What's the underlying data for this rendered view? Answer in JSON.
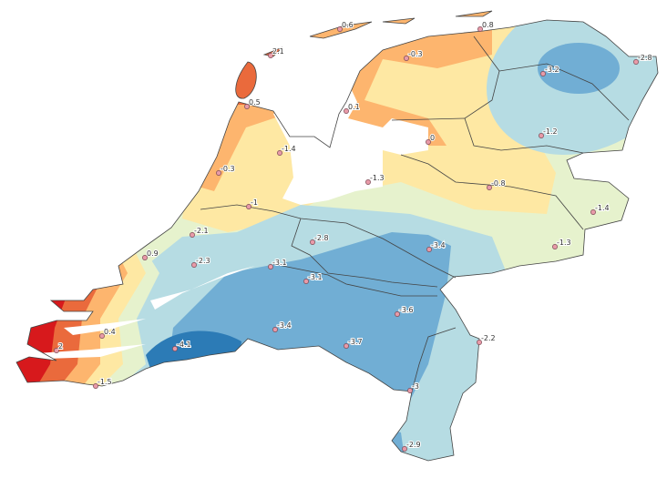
{
  "map": {
    "colors": {
      "red": "#d7191c",
      "dark_orange": "#ea6a3c",
      "orange": "#fdb56e",
      "yellow": "#fee8a3",
      "light_green": "#e6f2cd",
      "light_blue": "#b6dce3",
      "medium_blue": "#71aed4",
      "dark_blue": "#2c7bb6",
      "water": "#ffffff"
    },
    "stations": [
      {
        "value": "0.6"
      },
      {
        "value": "0.8"
      },
      {
        "value": "2.1"
      },
      {
        "value": "-0.3"
      },
      {
        "value": "-3.2"
      },
      {
        "value": "-2.8"
      },
      {
        "value": "0.5"
      },
      {
        "value": "0.1"
      },
      {
        "value": "0"
      },
      {
        "value": "-1.2"
      },
      {
        "value": "-1.4"
      },
      {
        "value": "-0.3"
      },
      {
        "value": "-1.3"
      },
      {
        "value": "-0.8"
      },
      {
        "value": "-1"
      },
      {
        "value": "-1.4"
      },
      {
        "value": "-2.1"
      },
      {
        "value": "-2.8"
      },
      {
        "value": "-3.4"
      },
      {
        "value": "-1.3"
      },
      {
        "value": "0.9"
      },
      {
        "value": "-2.3"
      },
      {
        "value": "-3.1"
      },
      {
        "value": "-3.1"
      },
      {
        "value": "-3.6"
      },
      {
        "value": "-3.4"
      },
      {
        "value": "0.4"
      },
      {
        "value": "2"
      },
      {
        "value": "-4.1"
      },
      {
        "value": "-3.7"
      },
      {
        "value": "-2.2"
      },
      {
        "value": "-1.5"
      },
      {
        "value": "-3"
      },
      {
        "value": "-2.9"
      }
    ]
  }
}
